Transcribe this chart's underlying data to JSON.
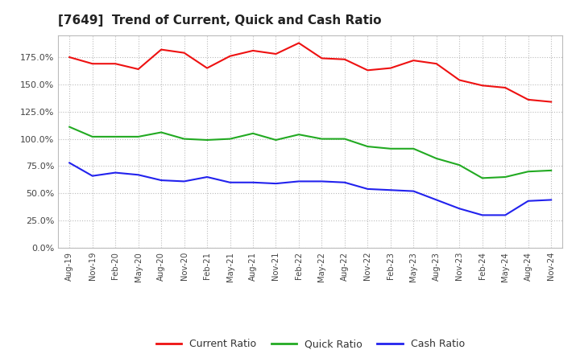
{
  "title": "[7649]  Trend of Current, Quick and Cash Ratio",
  "x_labels": [
    "Aug-19",
    "Nov-19",
    "Feb-20",
    "May-20",
    "Aug-20",
    "Nov-20",
    "Feb-21",
    "May-21",
    "Aug-21",
    "Nov-21",
    "Feb-22",
    "May-22",
    "Aug-22",
    "Nov-22",
    "Feb-23",
    "May-23",
    "Aug-23",
    "Nov-23",
    "Feb-24",
    "May-24",
    "Aug-24",
    "Nov-24"
  ],
  "current_ratio": [
    1.75,
    1.69,
    1.69,
    1.64,
    1.82,
    1.79,
    1.65,
    1.76,
    1.81,
    1.78,
    1.88,
    1.74,
    1.73,
    1.63,
    1.65,
    1.72,
    1.69,
    1.54,
    1.49,
    1.47,
    1.36,
    1.34
  ],
  "quick_ratio": [
    1.11,
    1.02,
    1.02,
    1.02,
    1.06,
    1.0,
    0.99,
    1.0,
    1.05,
    0.99,
    1.04,
    1.0,
    1.0,
    0.93,
    0.91,
    0.91,
    0.82,
    0.76,
    0.64,
    0.65,
    0.7,
    0.71
  ],
  "cash_ratio": [
    0.78,
    0.66,
    0.69,
    0.67,
    0.62,
    0.61,
    0.65,
    0.6,
    0.6,
    0.59,
    0.61,
    0.61,
    0.6,
    0.54,
    0.53,
    0.52,
    0.44,
    0.36,
    0.3,
    0.3,
    0.43,
    0.44
  ],
  "current_color": "#EE1111",
  "quick_color": "#22AA22",
  "cash_color": "#2222EE",
  "bg_color": "#FFFFFF",
  "plot_bg_color": "#FFFFFF",
  "grid_color": "#BBBBBB",
  "ylim": [
    0.0,
    1.95
  ],
  "yticks": [
    0.0,
    0.25,
    0.5,
    0.75,
    1.0,
    1.25,
    1.5,
    1.75
  ],
  "legend_labels": [
    "Current Ratio",
    "Quick Ratio",
    "Cash Ratio"
  ]
}
